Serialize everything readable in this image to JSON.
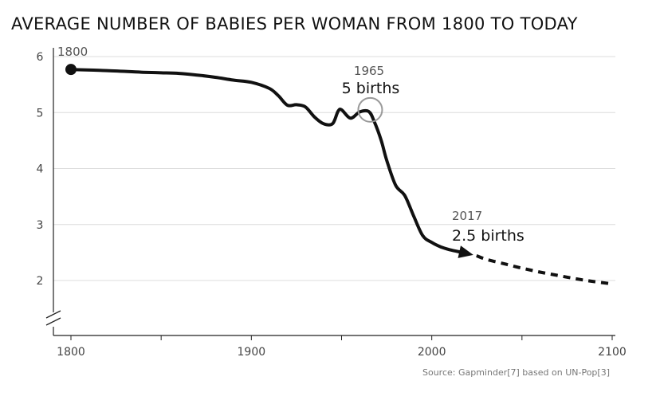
{
  "chart_data": {
    "type": "line",
    "title": "AVERAGE NUMBER OF BABIES PER WOMAN FROM 1800 TO TODAY",
    "xlabel": "",
    "ylabel": "",
    "xlim": [
      1790,
      2100
    ],
    "ylim": [
      1.5,
      6.1
    ],
    "x_ticks": [
      1800,
      1900,
      2000,
      2100
    ],
    "y_ticks": [
      2,
      3,
      4,
      5,
      6
    ],
    "grid": true,
    "series": [
      {
        "x": [
          1800,
          1820,
          1840,
          1850,
          1860,
          1870,
          1880,
          1890,
          1900,
          1910,
          1915,
          1920,
          1925,
          1930,
          1935,
          1940,
          1945,
          1948,
          1950,
          1955,
          1960,
          1965,
          1968,
          1972,
          1975,
          1980,
          1985,
          1990,
          1995,
          2000,
          2005,
          2010,
          2017
        ],
        "y": [
          5.77,
          5.75,
          5.72,
          5.71,
          5.7,
          5.67,
          5.63,
          5.58,
          5.54,
          5.43,
          5.3,
          5.13,
          5.14,
          5.1,
          4.92,
          4.8,
          4.8,
          5.02,
          5.05,
          4.9,
          5.01,
          5.02,
          4.85,
          4.5,
          4.15,
          3.7,
          3.52,
          3.15,
          2.8,
          2.68,
          2.6,
          2.55,
          2.5
        ]
      },
      {
        "x": [
          2017,
          2030,
          2040,
          2050,
          2060,
          2070,
          2080,
          2090,
          2100
        ],
        "y": [
          2.5,
          2.38,
          2.3,
          2.22,
          2.15,
          2.09,
          2.03,
          1.98,
          1.94
        ]
      }
    ],
    "annotations": [
      {
        "x": 1965,
        "y": 5.02,
        "year_label": "1965",
        "value_label": "5 births"
      },
      {
        "x": 2017,
        "y": 2.5,
        "year_label": "2017",
        "value_label": "2.5 births"
      }
    ],
    "start_label": "1800",
    "source": "Source: Gapminder[7] based on UN-Pop[3]"
  }
}
